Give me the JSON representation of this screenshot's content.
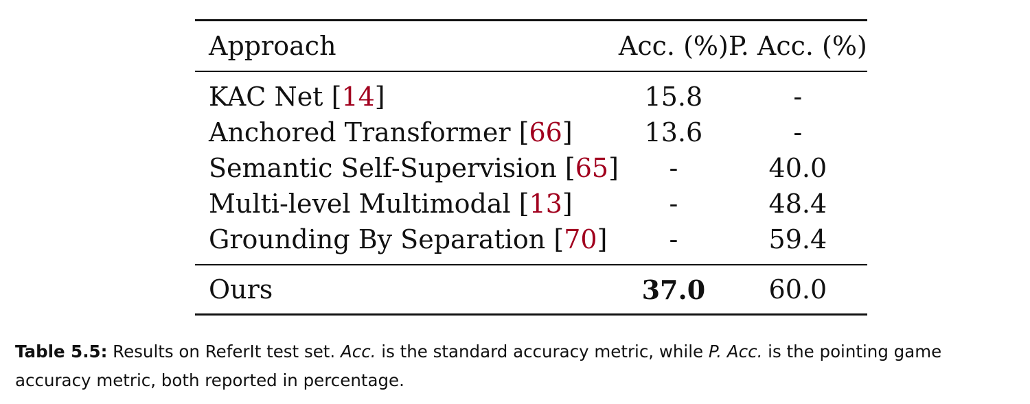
{
  "table": {
    "headers": {
      "approach": "Approach",
      "acc": "Acc. (%)",
      "pacc": "P. Acc. (%)"
    },
    "rows": [
      {
        "approach": "KAC Net",
        "ref": "14",
        "acc": "15.8",
        "pacc": "-"
      },
      {
        "approach": "Anchored Transformer",
        "ref": "66",
        "acc": "13.6",
        "pacc": "-"
      },
      {
        "approach": "Semantic Self-Supervision",
        "ref": "65",
        "acc": "-",
        "pacc": "40.0"
      },
      {
        "approach": "Multi-level Multimodal",
        "ref": "13",
        "acc": "-",
        "pacc": "48.4"
      },
      {
        "approach": "Grounding By Separation",
        "ref": "70",
        "acc": "-",
        "pacc": "59.4"
      }
    ],
    "ours": {
      "approach": "Ours",
      "acc": "37.0",
      "pacc": "60.0"
    }
  },
  "caption": {
    "label": "Table 5.5:",
    "text_1": " Results on ReferIt test set. ",
    "italic_1": "Acc.",
    "text_2": " is the standard accuracy metric, while ",
    "italic_2": "P. Acc.",
    "text_3": " is the pointing game accuracy metric, both reported in percentage."
  },
  "colors": {
    "citation": "#a1001e",
    "text": "#111111"
  }
}
